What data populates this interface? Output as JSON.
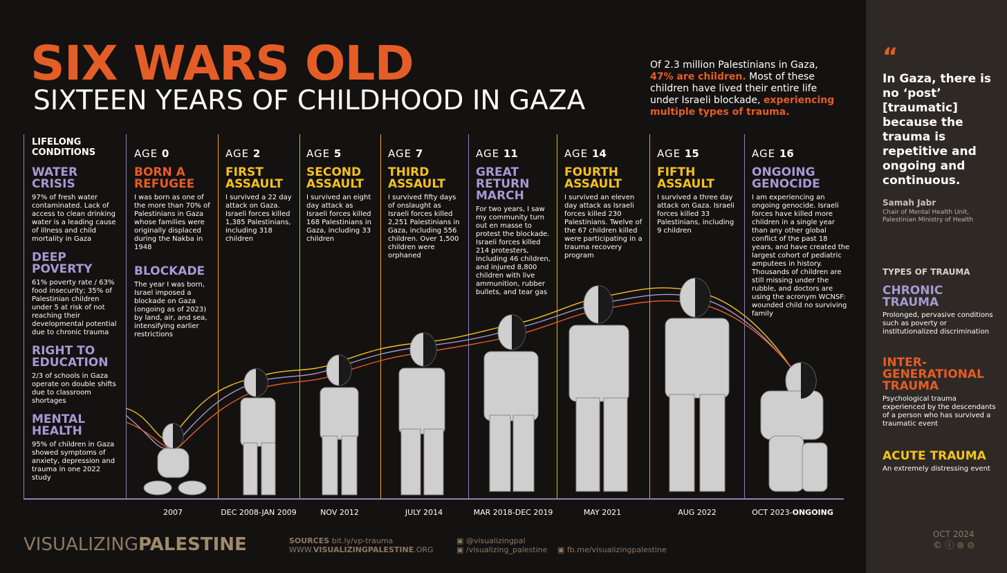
{
  "title": "SIX WARS OLD",
  "subtitle": "SIXTEEN YEARS OF CHILDHOOD IN GAZA",
  "intro": {
    "part1": "Of 2.3 million Palestinians in Gaza,",
    "highlight1": "47% are children.",
    "part2": "Most of these children have lived their entire life under Israeli blockade,",
    "highlight2": "experiencing multiple types of trauma."
  },
  "lifelong": {
    "heading": "LIFELONG CONDITIONS",
    "items": [
      {
        "title": "WATER CRISIS",
        "body": "97% of fresh water contaminated. Lack of access to clean drinking water is a leading cause of illness and child mortality in Gaza"
      },
      {
        "title": "DEEP POVERTY",
        "body": "61% poverty rate / 63% food insecurity; 35% of Palestinian children under 5 at risk of not reaching their developmental potential due to chronic trauma"
      },
      {
        "title": "RIGHT TO EDUCATION",
        "body": "2/3 of schools in Gaza operate on double shifts due to classroom shortages"
      },
      {
        "title": "MENTAL HEALTH",
        "body": "95% of children in Gaza showed symptoms of anxiety, depression and trauma in one 2022 study"
      }
    ]
  },
  "age_word": "AGE",
  "stages": [
    {
      "age": "0",
      "title": "BORN A REFUGEE",
      "body": "I was born as one of the more than 70% of Palestinians in Gaza whose families were originally displaced during the Nakba in 1948",
      "title2": "BLOCKADE",
      "body2": "The year I was born, Israel imposed a blockade on Gaza (ongoing as of 2023) by land, air, and sea, intensifying earlier restrictions",
      "date": "2007",
      "color": "#e55d26"
    },
    {
      "age": "2",
      "title": "FIRST ASSAULT",
      "body": "I survived a 22 day attack on Gaza. Israeli forces killed 1,385 Palestinians, including 318 children",
      "date": "DEC 2008-JAN 2009",
      "color": "#f5c21b"
    },
    {
      "age": "5",
      "title": "SECOND ASSAULT",
      "body": "I survived an eight day attack as Israeli forces killed 168 Palestinians in Gaza, including 33 children",
      "date": "NOV 2012",
      "color": "#f5c21b"
    },
    {
      "age": "7",
      "title": "THIRD ASSAULT",
      "body": "I survived fifty days of onslaught as Israeli forces killed 2,251 Palestinians in Gaza, including 556 children. Over 1,500 children were orphaned",
      "date": "JULY 2014",
      "color": "#f5c21b"
    },
    {
      "age": "11",
      "title": "GREAT RETURN MARCH",
      "body": "For two years, I saw my community turn out en masse to protest the blockade. Israeli forces killed 214 protesters, including 46 children, and injured 8,800 children with live ammunition, rubber bullets, and tear gas",
      "date": "MAR 2018-DEC 2019",
      "color": "#a49ad3"
    },
    {
      "age": "14",
      "title": "FOURTH ASSAULT",
      "body": "I survived an eleven day attack as Israeli forces killed 230 Palestinians. Twelve of the 67 children killed were participating in a trauma recovery program",
      "date": "MAY 2021",
      "color": "#f5c21b"
    },
    {
      "age": "15",
      "title": "FIFTH ASSAULT",
      "body": "I survived a three day attack on Gaza. Israeli forces killed 33 Palestinians, including 9 children",
      "date": "AUG 2022",
      "color": "#f5c21b"
    },
    {
      "age": "16",
      "title": "ONGOING GENOCIDE",
      "body": "I am experiencing an ongoing genocide. Israeli forces have killed more children in a single year than any other global conflict of the past 18 years, and have created the largest cohort of pediatric amputees in history. Thousands of children are still missing under the rubble, and doctors are using the acronym WCNSF: wounded child no surviving family",
      "date": "OCT 2023-",
      "date_bold": "ONGOING",
      "color": "#a49ad3"
    }
  ],
  "quote": {
    "mark": "“",
    "text": "In Gaza, there is no ‘post’ [traumatic] because the trauma is repetitive and ongoing and continuous.",
    "name": "Samah Jabr",
    "title": "Chair of Mental Health Unit, Palestinian Ministry of Health"
  },
  "trauma_types": {
    "heading": "TYPES OF TRAUMA",
    "items": [
      {
        "title": "CHRONIC TRAUMA",
        "body": "Prolonged, pervasive conditions such as poverty or institutionalized discrimination",
        "color": "#a49ad3"
      },
      {
        "title": "INTER-GENERATIONAL TRAUMA",
        "body": "Psychological trauma experienced by the descendants of a person who has survived a traumatic event",
        "color": "#e55d26"
      },
      {
        "title": "ACUTE TRAUMA",
        "body": "An extremely distressing event",
        "color": "#f5c21b"
      }
    ]
  },
  "footer": {
    "brand_light": "VISUALIZING",
    "brand_bold": "PALESTINE",
    "sources_label": "SOURCES",
    "sources_url": "bit.ly/vp-trauma",
    "site_prefix": "WWW.",
    "site_bold": "VISUALIZINGPALESTINE",
    "site_suffix": ".ORG",
    "twitter": "@visualizingpal",
    "instagram": "/visualizing_palestine",
    "facebook": "fb.me/visualizingpalestine",
    "date": "OCT 2024",
    "license": "© ⓘ ⊜ ⊝"
  },
  "colors": {
    "orange": "#e55d26",
    "yellow": "#f5c21b",
    "purple": "#a49ad3",
    "background": "#141111",
    "sidebar": "#2e2925"
  }
}
